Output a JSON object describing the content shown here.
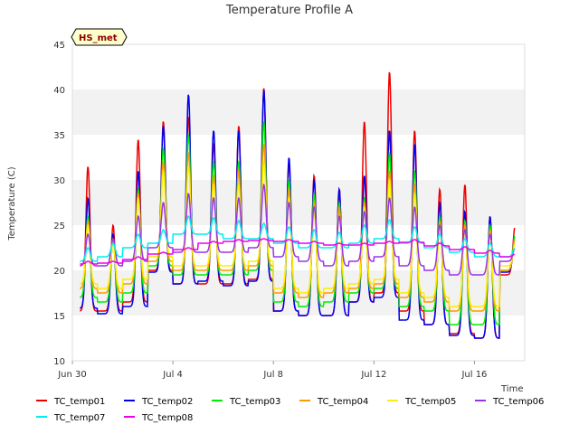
{
  "chart_data": {
    "type": "line",
    "title": "Temperature Profile A",
    "xlabel": "Time",
    "ylabel": "Temperature (C)",
    "ylim": [
      10,
      45
    ],
    "yticks": [
      10,
      15,
      20,
      25,
      30,
      35,
      40,
      45
    ],
    "xlim": [
      "2023-06-30",
      "2023-07-18"
    ],
    "xticks": [
      {
        "date": "2023-06-30",
        "label": "Jun 30"
      },
      {
        "date": "2023-07-04",
        "label": "Jul 4"
      },
      {
        "date": "2023-07-08",
        "label": "Jul 8"
      },
      {
        "date": "2023-07-12",
        "label": "Jul 12"
      },
      {
        "date": "2023-07-16",
        "label": "Jul 16"
      }
    ],
    "grid": "horizontal alternating bands",
    "legend_position": "bottom",
    "annotation": "HS_met",
    "series": [
      {
        "name": "TC_temp01",
        "color": "#ee0000",
        "day_max": [
          31.5,
          25,
          34.5,
          36.5,
          37,
          34,
          36,
          40.2,
          32,
          30.5,
          29,
          36.5,
          42,
          35.5,
          29,
          29.5,
          26,
          25
        ],
        "day_min": [
          15.5,
          15.5,
          16.5,
          20,
          18.5,
          18.5,
          18.5,
          19,
          15.5,
          15,
          15,
          16.5,
          17.5,
          15.5,
          14,
          13,
          12.5,
          19.5
        ]
      },
      {
        "name": "TC_temp02",
        "color": "#0000ee",
        "day_max": [
          28,
          24,
          31,
          36,
          39.5,
          35.5,
          35.5,
          40,
          32.5,
          30,
          29,
          30.5,
          35.5,
          34,
          27.5,
          26.5,
          26,
          24
        ],
        "day_min": [
          15.8,
          15.2,
          16,
          19.8,
          18.5,
          18.8,
          18.3,
          18.8,
          15.5,
          15,
          15,
          16.5,
          17,
          14.5,
          14,
          12.8,
          12.5,
          19.8
        ]
      },
      {
        "name": "TC_temp03",
        "color": "#00ee00",
        "day_max": [
          26,
          23.5,
          29,
          33.5,
          35,
          32,
          32,
          36.5,
          30,
          28.5,
          27.5,
          28,
          33,
          31,
          26,
          25.5,
          25,
          24
        ],
        "day_min": [
          17,
          16.5,
          17.5,
          20.5,
          19.5,
          19.5,
          19.5,
          20,
          16.5,
          16,
          16.5,
          17.5,
          18,
          16,
          15.5,
          14,
          14,
          20
        ]
      },
      {
        "name": "TC_temp04",
        "color": "#ff9900",
        "day_max": [
          25.5,
          23.5,
          28.5,
          32,
          33,
          30.5,
          31,
          34,
          29,
          27.5,
          27,
          27.5,
          31,
          29.5,
          25.5,
          25,
          24.5,
          23.5
        ],
        "day_min": [
          18,
          17.5,
          18.5,
          21,
          20,
          20,
          20,
          20.5,
          17.5,
          17,
          17.5,
          18,
          18.5,
          17,
          16.5,
          15.5,
          15.5,
          20
        ]
      },
      {
        "name": "TC_temp05",
        "color": "#ffee00",
        "day_max": [
          25,
          23,
          28,
          31,
          31.5,
          29.5,
          29.5,
          32,
          28,
          26.5,
          26,
          27,
          30,
          28.5,
          25,
          24.5,
          24,
          23
        ],
        "day_min": [
          18.5,
          18,
          19,
          21.5,
          20.5,
          20.5,
          20.5,
          21,
          18,
          17.5,
          18,
          18.5,
          19,
          17.5,
          17,
          16,
          16,
          20.5
        ]
      },
      {
        "name": "TC_temp06",
        "color": "#9933ee",
        "day_max": [
          24,
          23.5,
          26,
          27.5,
          28.5,
          28,
          28,
          29.5,
          27.5,
          27,
          26,
          26.5,
          28,
          27,
          25,
          24.5,
          24,
          22.5
        ],
        "day_min": [
          20.5,
          20.5,
          21,
          22.5,
          22,
          22,
          22,
          22.5,
          21.5,
          21,
          20.5,
          21,
          21.5,
          20.5,
          20,
          19.5,
          19.5,
          21
        ]
      },
      {
        "name": "TC_temp07",
        "color": "#00eeee",
        "day_max": [
          22.5,
          23,
          24,
          24.5,
          26,
          25.8,
          25.5,
          25.2,
          24.8,
          24.5,
          24.2,
          25,
          25.6,
          24.8,
          24,
          23.5,
          23,
          22.5
        ],
        "day_min": [
          21,
          21.5,
          22.5,
          23,
          24,
          24,
          23.5,
          23.5,
          23,
          22.5,
          22.5,
          23,
          23.5,
          23,
          22.5,
          22,
          21.5,
          21.5
        ]
      },
      {
        "name": "TC_temp08",
        "color": "#ee00ee",
        "day_max": [
          21,
          21,
          21.5,
          22,
          22.5,
          23.2,
          23.4,
          23.5,
          23.4,
          23.2,
          23,
          23,
          23.2,
          23.4,
          23,
          22.6,
          22.2,
          21.8
        ],
        "day_min": [
          20.7,
          20.8,
          21.2,
          21.8,
          22.3,
          23,
          23.2,
          23.3,
          23.2,
          23,
          22.8,
          22.8,
          23,
          23.1,
          22.7,
          22.3,
          21.9,
          21.5
        ]
      }
    ]
  }
}
